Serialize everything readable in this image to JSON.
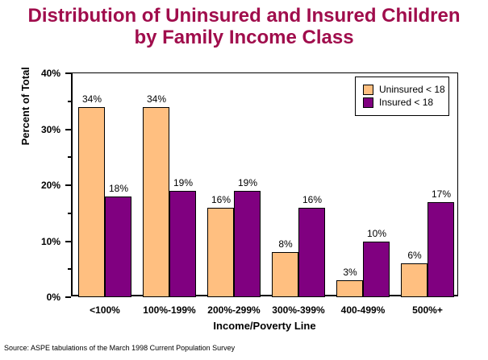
{
  "title": {
    "line1": "Distribution of Uninsured and Insured Children",
    "line2": "by Family Income Class"
  },
  "source": "Source: ASPE tabulations of the March 1998 Current Population Survey",
  "colors": {
    "title": "#A00D4C",
    "uninsured": "#FFBF80",
    "insured": "#800080",
    "axis": "#000000",
    "background": "#FFFFFF"
  },
  "chart_data": {
    "type": "bar",
    "title": "Distribution of Uninsured and Insured Children by Family Income Class",
    "categories": [
      "<100%",
      "100%-199%",
      "200%-299%",
      "300%-399%",
      "400-499%",
      "500%+"
    ],
    "series": [
      {
        "name": "Uninsured < 18",
        "color": "#FFBF80",
        "values": [
          34,
          34,
          16,
          8,
          3,
          6
        ]
      },
      {
        "name": "Insured < 18",
        "color": "#800080",
        "values": [
          18,
          19,
          19,
          16,
          10,
          17
        ]
      }
    ],
    "data_labels": [
      [
        "34%",
        "34%",
        "16%",
        "8%",
        "3%",
        "6%"
      ],
      [
        "18%",
        "19%",
        "19%",
        "16%",
        "10%",
        "17%"
      ]
    ],
    "xlabel": "Income/Poverty Line",
    "ylabel": "Percent of Total",
    "ylim": [
      0,
      40
    ],
    "yticks": [
      0,
      10,
      20,
      30,
      40
    ],
    "ytick_labels": [
      "0%",
      "10%",
      "20%",
      "30%",
      "40%"
    ],
    "minor_yticks": [
      5,
      15,
      25,
      35
    ],
    "grid": false,
    "legend_position": "top-right"
  }
}
